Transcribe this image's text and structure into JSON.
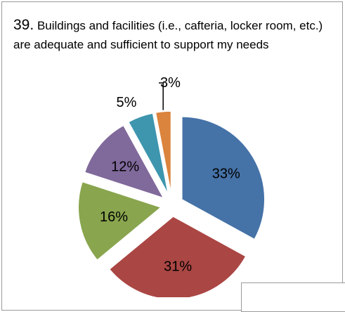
{
  "chart_data": {
    "type": "pie",
    "title_number": "39.",
    "title_text": "Buildings and facilities (i.e., cafteria, locker room, etc.) are adequate and sufficient to support my needs",
    "exploded": true,
    "slices": [
      {
        "label": "33%",
        "value": 33,
        "color": "#4572A7"
      },
      {
        "label": "31%",
        "value": 31,
        "color": "#AA4643"
      },
      {
        "label": "16%",
        "value": 16,
        "color": "#89A54E"
      },
      {
        "label": "12%",
        "value": 12,
        "color": "#80699B"
      },
      {
        "label": "5%",
        "value": 5,
        "color": "#3D96AE"
      },
      {
        "label": "3%",
        "value": 3,
        "color": "#DB843D"
      }
    ]
  }
}
